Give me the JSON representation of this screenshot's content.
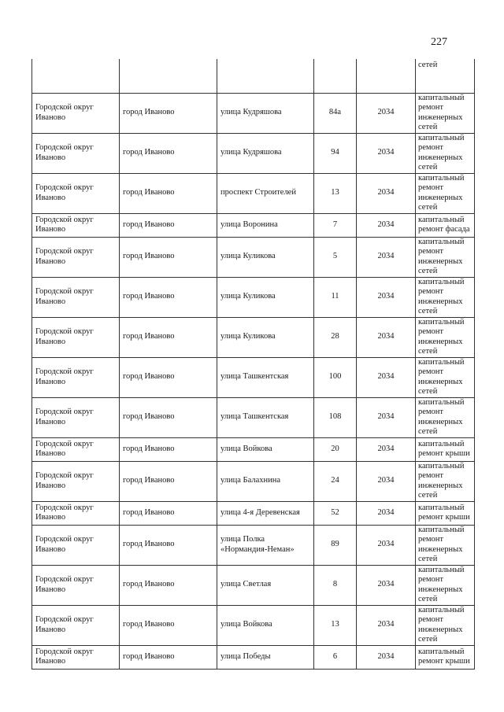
{
  "page_number": "227",
  "continuation": {
    "work": "сетей"
  },
  "rows": [
    {
      "district": "Городской округ Иваново",
      "city": "город Иваново",
      "street": "улица Кудряшова",
      "house": "84а",
      "year": "2034",
      "work": "капитальный ремонт инженерных сетей"
    },
    {
      "district": "Городской округ Иваново",
      "city": "город Иваново",
      "street": "улица Кудряшова",
      "house": "94",
      "year": "2034",
      "work": "капитальный ремонт инженерных сетей"
    },
    {
      "district": "Городской округ Иваново",
      "city": "город Иваново",
      "street": "проспект Строителей",
      "house": "13",
      "year": "2034",
      "work": "капитальный ремонт инженерных сетей"
    },
    {
      "district": "Городской округ Иваново",
      "city": "город Иваново",
      "street": "улица Воронина",
      "house": "7",
      "year": "2034",
      "work": "капитальный ремонт фасада"
    },
    {
      "district": "Городской округ Иваново",
      "city": "город Иваново",
      "street": "улица Куликова",
      "house": "5",
      "year": "2034",
      "work": "капитальный ремонт инженерных сетей"
    },
    {
      "district": "Городской округ Иваново",
      "city": "город Иваново",
      "street": "улица Куликова",
      "house": "11",
      "year": "2034",
      "work": "капитальный ремонт инженерных сетей"
    },
    {
      "district": "Городской округ Иваново",
      "city": "город Иваново",
      "street": "улица Куликова",
      "house": "28",
      "year": "2034",
      "work": "капитальный ремонт инженерных сетей"
    },
    {
      "district": "Городской округ Иваново",
      "city": "город Иваново",
      "street": "улица Ташкентская",
      "house": "100",
      "year": "2034",
      "work": "капитальный ремонт инженерных сетей"
    },
    {
      "district": "Городской округ Иваново",
      "city": "город Иваново",
      "street": "улица Ташкентская",
      "house": "108",
      "year": "2034",
      "work": "капитальный ремонт инженерных сетей"
    },
    {
      "district": "Городской округ Иваново",
      "city": "город Иваново",
      "street": "улица Войкова",
      "house": "20",
      "year": "2034",
      "work": "капитальный ремонт крыши"
    },
    {
      "district": "Городской округ Иваново",
      "city": "город Иваново",
      "street": "улица Балахнина",
      "house": "24",
      "year": "2034",
      "work": "капитальный ремонт инженерных сетей"
    },
    {
      "district": "Городской округ Иваново",
      "city": "город Иваново",
      "street": "улица 4-я Деревенская",
      "house": "52",
      "year": "2034",
      "work": "капитальный ремонт крыши"
    },
    {
      "district": "Городской округ Иваново",
      "city": "город Иваново",
      "street": "улица Полка «Нормандия-Неман»",
      "house": "89",
      "year": "2034",
      "work": "капитальный ремонт инженерных сетей"
    },
    {
      "district": "Городской округ Иваново",
      "city": "город Иваново",
      "street": "улица Светлая",
      "house": "8",
      "year": "2034",
      "work": "капитальный ремонт инженерных сетей"
    },
    {
      "district": "Городской округ Иваново",
      "city": "город Иваново",
      "street": "улица Войкова",
      "house": "13",
      "year": "2034",
      "work": "капитальный ремонт инженерных сетей"
    },
    {
      "district": "Городской округ Иваново",
      "city": "город Иваново",
      "street": "улица Победы",
      "house": "6",
      "year": "2034",
      "work": "капитальный ремонт крыши"
    }
  ]
}
